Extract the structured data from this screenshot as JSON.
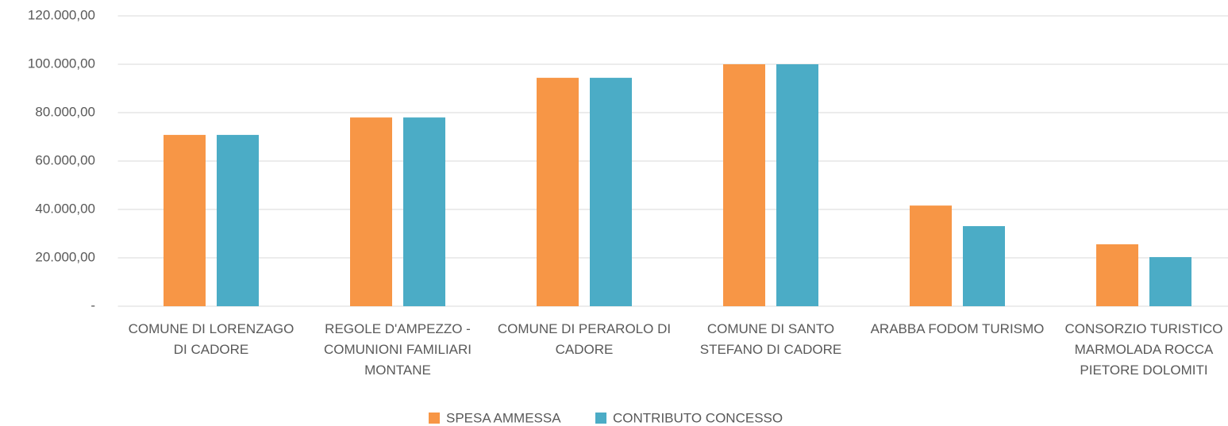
{
  "chart_data": {
    "type": "bar",
    "categories": [
      "COMUNE DI LORENZAGO DI CADORE",
      "REGOLE D'AMPEZZO - COMUNIONI FAMILIARI MONTANE",
      "COMUNE DI PERAROLO DI CADORE",
      "COMUNE DI SANTO STEFANO DI CADORE",
      "ARABBA FODOM TURISMO",
      "CONSORZIO TURISTICO MARMOLADA ROCCA PIETORE DOLOMITI"
    ],
    "series": [
      {
        "name": "SPESA AMMESSA",
        "color": "#f79646",
        "values": [
          70800,
          78000,
          94400,
          100000,
          41600,
          25600
        ]
      },
      {
        "name": "CONTRIBUTO CONCESSO",
        "color": "#4bacc6",
        "values": [
          70800,
          78000,
          94400,
          100000,
          33100,
          20300
        ]
      }
    ],
    "ylim": [
      0,
      120000
    ],
    "yticks": [
      {
        "value": 0,
        "label": "-"
      },
      {
        "value": 20000,
        "label": "20.000,00"
      },
      {
        "value": 40000,
        "label": "40.000,00"
      },
      {
        "value": 60000,
        "label": "60.000,00"
      },
      {
        "value": 80000,
        "label": "80.000,00"
      },
      {
        "value": 100000,
        "label": "100.000,00"
      },
      {
        "value": 120000,
        "label": "120.000,00"
      }
    ],
    "grid": true,
    "legend": "bottom"
  }
}
